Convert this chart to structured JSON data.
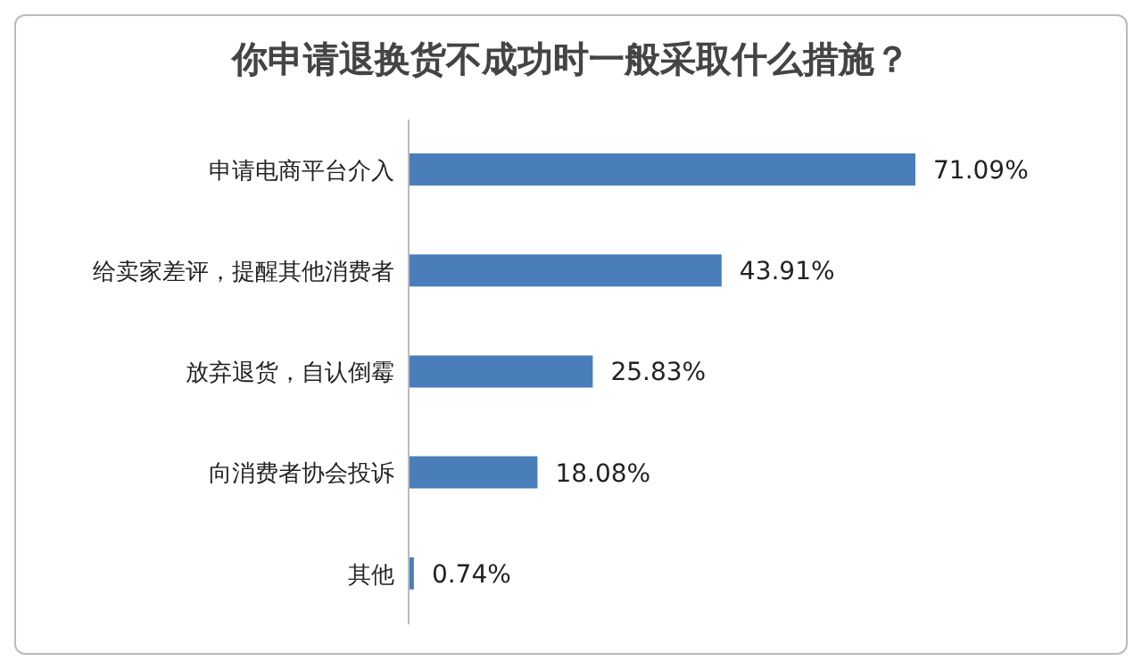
{
  "chart_data": {
    "type": "bar",
    "orientation": "horizontal",
    "title": "你申请退换货不成功时一般采取什么措施？",
    "categories": [
      "申请电商平台介入",
      "给卖家差评，提醒其他消费者",
      "放弃退货，自认倒霉",
      "向消费者协会投诉",
      "其他"
    ],
    "values": [
      71.09,
      43.91,
      25.83,
      18.08,
      0.74
    ],
    "value_labels": [
      "71.09%",
      "43.91%",
      "25.83%",
      "18.08%",
      "0.74%"
    ],
    "color": "#4a7ebb",
    "grid": false,
    "legend": false
  }
}
